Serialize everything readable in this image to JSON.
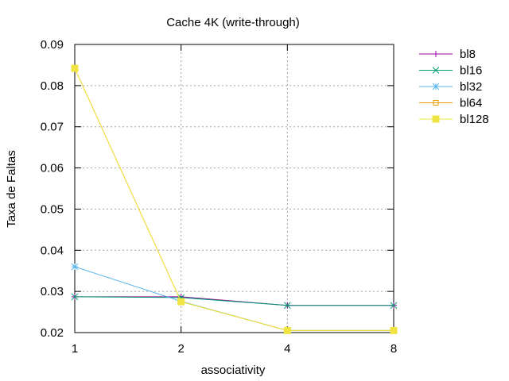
{
  "chart_data": {
    "type": "line",
    "title": "Cache 4K (write-through)",
    "xlabel": "associativity",
    "ylabel": "Taxa de Faltas",
    "categories": [
      "1",
      "2",
      "4",
      "8"
    ],
    "ylim": [
      0.02,
      0.09
    ],
    "yticks": [
      "0.02",
      "0.03",
      "0.04",
      "0.05",
      "0.06",
      "0.07",
      "0.08",
      "0.09"
    ],
    "grid": true,
    "legend_position": "outside-right-top",
    "series": [
      {
        "name": "bl8",
        "color": "#94009a",
        "marker": "plus",
        "values": [
          0.0287,
          0.0287,
          0.0266,
          0.0266
        ]
      },
      {
        "name": "bl16",
        "color": "#009e73",
        "marker": "cross",
        "values": [
          0.0287,
          0.0285,
          0.0266,
          0.0266
        ]
      },
      {
        "name": "bl32",
        "color": "#56b4e9",
        "marker": "asterisk",
        "values": [
          0.036,
          0.0276,
          0.0205,
          0.0205
        ]
      },
      {
        "name": "bl64",
        "color": "#e69f00",
        "marker": "open-square",
        "values": [
          0.0842,
          0.0275,
          0.0205,
          0.0205
        ]
      },
      {
        "name": "bl128",
        "color": "#f0e442",
        "marker": "filled-square",
        "values": [
          0.0842,
          0.0275,
          0.0205,
          0.0205
        ]
      }
    ]
  }
}
